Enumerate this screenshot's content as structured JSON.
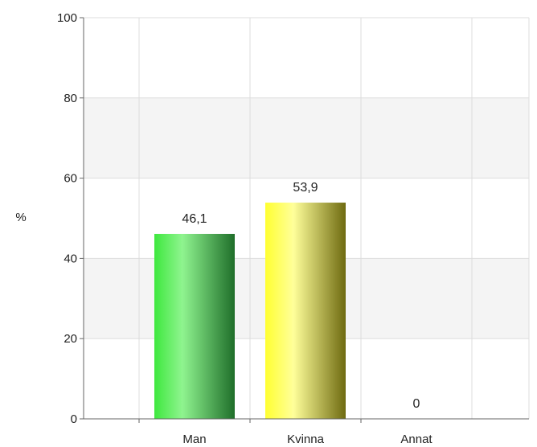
{
  "chart_data": {
    "type": "bar",
    "categories": [
      "Man",
      "Kvinna",
      "Annat"
    ],
    "values": [
      46.1,
      53.9,
      0
    ],
    "data_labels": [
      "46,1",
      "53,9",
      "0"
    ],
    "ylabel": "%",
    "ylim": [
      0,
      100
    ],
    "yticks": [
      0,
      20,
      40,
      60,
      80,
      100
    ],
    "ytick_labels": [
      "0",
      "20",
      "40",
      "60",
      "80",
      "100"
    ],
    "grid": true,
    "legend": "none",
    "bar_colors": [
      [
        "#3ee83e",
        "#8ff48f",
        "#1f6e2a"
      ],
      [
        "#ffff30",
        "#ffff9a",
        "#6e6a10"
      ],
      [
        "#cccccc",
        "#eeeeee",
        "#888888"
      ]
    ],
    "band_color": "#f4f4f4",
    "grid_color": "#dddddd",
    "axis_color": "#666666"
  }
}
